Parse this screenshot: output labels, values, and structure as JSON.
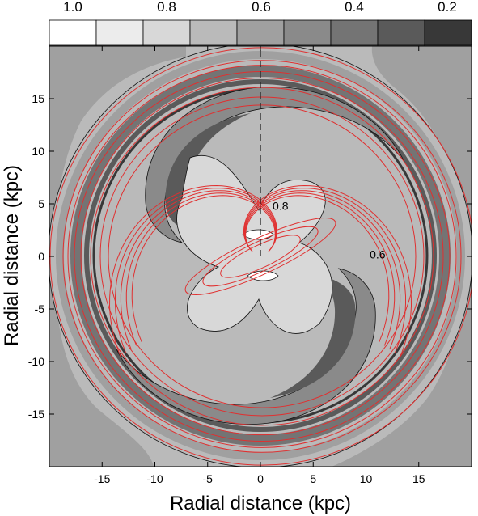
{
  "chart_data": {
    "type": "heatmap",
    "title": "",
    "xlabel": "Radial distance (kpc)",
    "ylabel": "Radial distance (kpc)",
    "xlim": [
      -20,
      20
    ],
    "ylim": [
      -20,
      20
    ],
    "xticks": [
      -15,
      -10,
      -5,
      0,
      5,
      10,
      15
    ],
    "yticks": [
      -15,
      -10,
      -5,
      0,
      5,
      10,
      15
    ],
    "colorbar": {
      "labels": [
        "1.0",
        "0.8",
        "0.6",
        "0.4",
        "0.2"
      ],
      "label_values": [
        1.0,
        0.8,
        0.6,
        0.4,
        0.2
      ],
      "levels": [
        1.0,
        0.9,
        0.8,
        0.7,
        0.6,
        0.5,
        0.4,
        0.3,
        0.2,
        0.1
      ],
      "colors": [
        "#ffffff",
        "#ececec",
        "#d8d8d8",
        "#bababa",
        "#a0a0a0",
        "#8a8a8a",
        "#747474",
        "#5a5a5a",
        "#383838"
      ]
    },
    "contour_labels": [
      {
        "text": "0.8",
        "x": 1.9,
        "y": 4.8
      },
      {
        "text": "0.6",
        "x": 11.1,
        "y": 0.2
      }
    ],
    "background_level": 0.6,
    "outer_region_level": 0.55,
    "center_level": 0.85,
    "overlay_contours": {
      "color": "#e03030"
    },
    "guide_line": {
      "x": 0,
      "y_from": 0,
      "y_to": 20,
      "style": "dashed"
    }
  }
}
